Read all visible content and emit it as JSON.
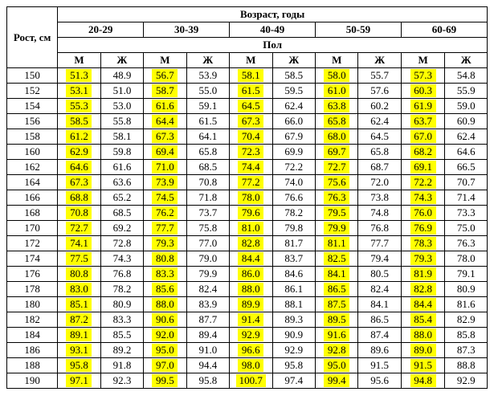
{
  "headers": {
    "rost": "Рост, см",
    "age_title": "Возраст, годы",
    "sex_title": "Пол",
    "age_groups": [
      "20-29",
      "30-39",
      "40-49",
      "50-59",
      "60-69"
    ],
    "sex_m": "М",
    "sex_f": "Ж"
  },
  "highlight_color": "#ffff00",
  "highlight_columns": [
    0,
    2,
    4,
    6,
    8
  ],
  "rows": [
    {
      "height": "150",
      "vals": [
        "51.3",
        "48.9",
        "56.7",
        "53.9",
        "58.1",
        "58.5",
        "58.0",
        "55.7",
        "57.3",
        "54.8"
      ]
    },
    {
      "height": "152",
      "vals": [
        "53.1",
        "51.0",
        "58.7",
        "55.0",
        "61.5",
        "59.5",
        "61.0",
        "57.6",
        "60.3",
        "55.9"
      ]
    },
    {
      "height": "154",
      "vals": [
        "55.3",
        "53.0",
        "61.6",
        "59.1",
        "64.5",
        "62.4",
        "63.8",
        "60.2",
        "61.9",
        "59.0"
      ]
    },
    {
      "height": "156",
      "vals": [
        "58.5",
        "55.8",
        "64.4",
        "61.5",
        "67.3",
        "66.0",
        "65.8",
        "62.4",
        "63.7",
        "60.9"
      ]
    },
    {
      "height": "158",
      "vals": [
        "61.2",
        "58.1",
        "67.3",
        "64.1",
        "70.4",
        "67.9",
        "68.0",
        "64.5",
        "67.0",
        "62.4"
      ]
    },
    {
      "height": "160",
      "vals": [
        "62.9",
        "59.8",
        "69.4",
        "65.8",
        "72.3",
        "69.9",
        "69.7",
        "65.8",
        "68.2",
        "64.6"
      ]
    },
    {
      "height": "162",
      "vals": [
        "64.6",
        "61.6",
        "71.0",
        "68.5",
        "74.4",
        "72.2",
        "72.7",
        "68.7",
        "69.1",
        "66.5"
      ]
    },
    {
      "height": "164",
      "vals": [
        "67.3",
        "63.6",
        "73.9",
        "70.8",
        "77.2",
        "74.0",
        "75.6",
        "72.0",
        "72.2",
        "70.7"
      ]
    },
    {
      "height": "166",
      "vals": [
        "68.8",
        "65.2",
        "74.5",
        "71.8",
        "78.0",
        "76.6",
        "76.3",
        "73.8",
        "74.3",
        "71.4"
      ]
    },
    {
      "height": "168",
      "vals": [
        "70.8",
        "68.5",
        "76.2",
        "73.7",
        "79.6",
        "78.2",
        "79.5",
        "74.8",
        "76.0",
        "73.3"
      ]
    },
    {
      "height": "170",
      "vals": [
        "72.7",
        "69.2",
        "77.7",
        "75.8",
        "81.0",
        "79.8",
        "79.9",
        "76.8",
        "76.9",
        "75.0"
      ]
    },
    {
      "height": "172",
      "vals": [
        "74.1",
        "72.8",
        "79.3",
        "77.0",
        "82.8",
        "81.7",
        "81.1",
        "77.7",
        "78.3",
        "76.3"
      ]
    },
    {
      "height": "174",
      "vals": [
        "77.5",
        "74.3",
        "80.8",
        "79.0",
        "84.4",
        "83.7",
        "82.5",
        "79.4",
        "79.3",
        "78.0"
      ]
    },
    {
      "height": "176",
      "vals": [
        "80.8",
        "76.8",
        "83.3",
        "79.9",
        "86.0",
        "84.6",
        "84.1",
        "80.5",
        "81.9",
        "79.1"
      ]
    },
    {
      "height": "178",
      "vals": [
        "83.0",
        "78.2",
        "85.6",
        "82.4",
        "88.0",
        "86.1",
        "86.5",
        "82.4",
        "82.8",
        "80.9"
      ]
    },
    {
      "height": "180",
      "vals": [
        "85.1",
        "80.9",
        "88.0",
        "83.9",
        "89.9",
        "88.1",
        "87.5",
        "84.1",
        "84.4",
        "81.6"
      ]
    },
    {
      "height": "182",
      "vals": [
        "87.2",
        "83.3",
        "90.6",
        "87.7",
        "91.4",
        "89.3",
        "89.5",
        "86.5",
        "85.4",
        "82.9"
      ]
    },
    {
      "height": "184",
      "vals": [
        "89.1",
        "85.5",
        "92.0",
        "89.4",
        "92.9",
        "90.9",
        "91.6",
        "87.4",
        "88.0",
        "85.8"
      ]
    },
    {
      "height": "186",
      "vals": [
        "93.1",
        "89.2",
        "95.0",
        "91.0",
        "96.6",
        "92.9",
        "92.8",
        "89.6",
        "89.0",
        "87.3"
      ]
    },
    {
      "height": "188",
      "vals": [
        "95.8",
        "91.8",
        "97.0",
        "94.4",
        "98.0",
        "95.8",
        "95.0",
        "91.5",
        "91.5",
        "88.8"
      ]
    },
    {
      "height": "190",
      "vals": [
        "97.1",
        "92.3",
        "99.5",
        "95.8",
        "100.7",
        "97.4",
        "99.4",
        "95.6",
        "94.8",
        "92.9"
      ]
    }
  ]
}
